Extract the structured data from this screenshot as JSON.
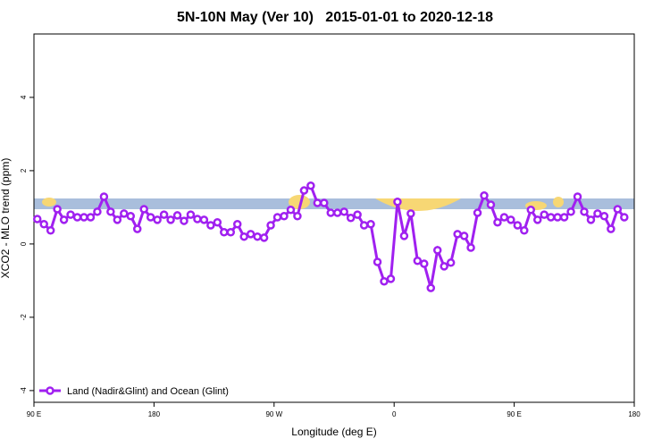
{
  "chart_data": {
    "type": "line",
    "title": "5N-10N May (Ver 10)   2015-01-01 to 2020-12-18",
    "xlabel": "Longitude (deg E)",
    "ylabel": "XCO2 - MLO trend (ppm)",
    "xlim": [
      90,
      540
    ],
    "ylim": [
      -4.32,
      5.73
    ],
    "xticks": [
      {
        "value": 90,
        "label": "90 E"
      },
      180,
      {
        "value": 270,
        "label": "90 W"
      },
      {
        "value": 360,
        "label": "0"
      },
      {
        "value": 450,
        "label": "90 E"
      },
      {
        "value": 540,
        "label": "180"
      }
    ],
    "yticks": [
      -4,
      -2,
      0,
      2,
      4
    ],
    "legend": "bottom-left",
    "x": [
      92.5,
      97.5,
      102.5,
      107.5,
      112.5,
      117.5,
      122.5,
      127.5,
      132.5,
      137.5,
      142.5,
      147.5,
      152.5,
      157.5,
      162.5,
      167.5,
      172.5,
      177.5,
      182.5,
      187.5,
      192.5,
      197.5,
      202.5,
      207.5,
      212.5,
      217.5,
      222.5,
      227.5,
      232.5,
      237.5,
      242.5,
      247.5,
      252.5,
      257.5,
      262.5,
      267.5,
      272.5,
      277.5,
      282.5,
      287.5,
      292.5,
      297.5,
      302.5,
      307.5,
      312.5,
      317.5,
      322.5,
      327.5,
      332.5,
      337.5,
      342.5,
      347.5,
      352.5,
      357.5,
      362.5,
      367.5,
      372.5,
      377.5,
      382.5,
      387.5,
      392.5,
      397.5,
      402.5,
      407.5,
      412.5,
      417.5,
      422.5,
      427.5,
      432.5,
      437.5,
      442.5,
      447.5,
      452.5,
      457.5,
      462.5,
      467.5,
      472.5,
      477.5,
      482.5,
      487.5,
      492.5,
      497.5,
      502.5,
      507.5,
      512.5,
      517.5,
      522.5,
      527.5,
      532.5
    ],
    "series": [
      {
        "name": "Land (Nadir&Glint) and Ocean (Glint)",
        "color": "#a020f0",
        "values": [
          0.68,
          0.54,
          0.37,
          0.95,
          0.66,
          0.8,
          0.73,
          0.73,
          0.73,
          0.88,
          1.29,
          0.88,
          0.66,
          0.83,
          0.76,
          0.41,
          0.95,
          0.73,
          0.66,
          0.8,
          0.66,
          0.78,
          0.63,
          0.8,
          0.68,
          0.66,
          0.51,
          0.59,
          0.32,
          0.32,
          0.54,
          0.2,
          0.27,
          0.2,
          0.17,
          0.51,
          0.73,
          0.76,
          0.93,
          0.76,
          1.46,
          1.59,
          1.12,
          1.12,
          0.85,
          0.85,
          0.88,
          0.71,
          0.8,
          0.51,
          0.54,
          -0.49,
          -1.02,
          -0.95,
          1.15,
          0.22,
          0.83,
          -0.46,
          -0.54,
          -1.2,
          -0.17,
          -0.61,
          -0.51,
          0.27,
          0.22,
          -0.1,
          0.85,
          1.32,
          1.07,
          0.59,
          0.73,
          0.66,
          0.51,
          0.37,
          0.93,
          0.66,
          0.8,
          0.73,
          0.73,
          0.73,
          0.88,
          1.29,
          0.88,
          0.66,
          0.83,
          0.76,
          0.41,
          0.95,
          0.73
        ]
      }
    ]
  }
}
